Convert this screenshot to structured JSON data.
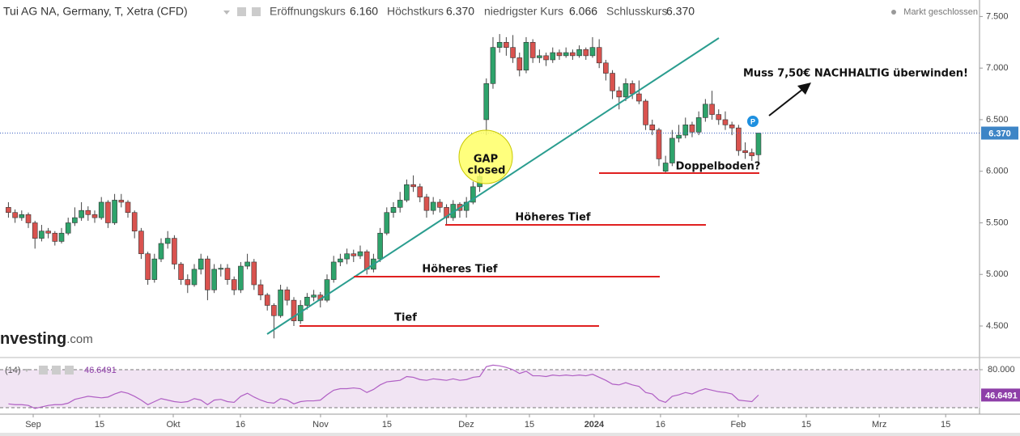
{
  "header": {
    "title": "Tui AG NA, Germany, T, Xetra (CFD)",
    "open_label": "Eröffnungskurs",
    "open": "6.160",
    "high_label": "Höchstkurs",
    "high": "6.370",
    "low_label": "niedrigster Kurs",
    "low": "6.066",
    "close_label": "Schlusskurs",
    "close": "6.370",
    "status": "Markt geschlossen"
  },
  "logo": [
    "nvesting",
    ".com"
  ],
  "chart_data": [
    {
      "type": "candlestick",
      "up_color": "#2ea36b",
      "down_color": "#d9534f",
      "xlim": [
        -1.27,
        146.3
      ],
      "ylim": [
        4.21,
        7.66
      ],
      "yticks": [
        {
          "value": 7.5,
          "label": "7.500"
        },
        {
          "value": 7,
          "label": "7.000"
        },
        {
          "value": 6.5,
          "label": "6.500"
        },
        {
          "value": 6,
          "label": "6.000"
        },
        {
          "value": 5.5,
          "label": "5.500"
        },
        {
          "value": 5,
          "label": "5.000"
        },
        {
          "value": 4.5,
          "label": "4.500"
        }
      ],
      "xticks": [
        {
          "value": 3.73,
          "label": "Sep"
        },
        {
          "value": 13.73,
          "label": "15"
        },
        {
          "value": 24.83,
          "label": "Okt"
        },
        {
          "value": 34.95,
          "label": "16"
        },
        {
          "value": 47.02,
          "label": "Nov"
        },
        {
          "value": 57.02,
          "label": "15"
        },
        {
          "value": 68.98,
          "label": "Dez"
        },
        {
          "value": 78.49,
          "label": "15"
        },
        {
          "value": 88.24,
          "label": "2024"
        },
        {
          "value": 98.24,
          "label": "16"
        },
        {
          "value": 109.95,
          "label": "Feb"
        },
        {
          "value": 120.2,
          "label": "15"
        },
        {
          "value": 131.2,
          "label": "Mrz"
        },
        {
          "value": 141.2,
          "label": "15"
        }
      ],
      "last_price": {
        "value": 6.37,
        "label": "6.370"
      },
      "annotations": [
        "GAP",
        "closed",
        "Höheres Tief",
        "Höheres Tief",
        "Tief",
        "Doppelboden?",
        "Muss 7,50€ NACHHALTIG überwinden!",
        "P"
      ],
      "ohlc": [
        [
          5.65,
          5.7,
          5.55,
          5.6
        ],
        [
          5.6,
          5.63,
          5.5,
          5.55
        ],
        [
          5.55,
          5.62,
          5.52,
          5.58
        ],
        [
          5.58,
          5.6,
          5.45,
          5.5
        ],
        [
          5.5,
          5.52,
          5.25,
          5.35
        ],
        [
          5.35,
          5.48,
          5.32,
          5.42
        ],
        [
          5.42,
          5.45,
          5.35,
          5.4
        ],
        [
          5.4,
          5.42,
          5.28,
          5.32
        ],
        [
          5.32,
          5.45,
          5.3,
          5.4
        ],
        [
          5.4,
          5.55,
          5.38,
          5.5
        ],
        [
          5.5,
          5.65,
          5.47,
          5.55
        ],
        [
          5.55,
          5.7,
          5.52,
          5.62
        ],
        [
          5.62,
          5.66,
          5.52,
          5.58
        ],
        [
          5.58,
          5.62,
          5.5,
          5.55
        ],
        [
          5.55,
          5.75,
          5.53,
          5.7
        ],
        [
          5.7,
          5.72,
          5.45,
          5.5
        ],
        [
          5.5,
          5.78,
          5.48,
          5.72
        ],
        [
          5.72,
          5.78,
          5.65,
          5.7
        ],
        [
          5.7,
          5.72,
          5.55,
          5.6
        ],
        [
          5.6,
          5.62,
          5.35,
          5.42
        ],
        [
          5.42,
          5.45,
          5.15,
          5.2
        ],
        [
          5.2,
          5.22,
          4.9,
          4.95
        ],
        [
          4.95,
          5.2,
          4.92,
          5.15
        ],
        [
          5.15,
          5.35,
          5.12,
          5.3
        ],
        [
          5.3,
          5.42,
          5.25,
          5.35
        ],
        [
          5.35,
          5.38,
          5.05,
          5.1
        ],
        [
          5.1,
          5.12,
          4.9,
          4.95
        ],
        [
          4.95,
          5.0,
          4.82,
          4.9
        ],
        [
          4.9,
          5.1,
          4.88,
          5.05
        ],
        [
          5.05,
          5.2,
          5.0,
          5.15
        ],
        [
          5.15,
          5.18,
          4.75,
          4.85
        ],
        [
          4.85,
          5.1,
          4.82,
          5.05
        ],
        [
          5.05,
          5.1,
          4.98,
          5.06
        ],
        [
          5.06,
          5.1,
          4.9,
          4.95
        ],
        [
          4.95,
          4.98,
          4.8,
          4.85
        ],
        [
          4.85,
          5.12,
          4.82,
          5.08
        ],
        [
          5.08,
          5.2,
          5.05,
          5.12
        ],
        [
          5.12,
          5.15,
          4.85,
          4.9
        ],
        [
          4.9,
          4.95,
          4.75,
          4.8
        ],
        [
          4.8,
          4.82,
          4.65,
          4.7
        ],
        [
          4.7,
          4.72,
          4.38,
          4.6
        ],
        [
          4.6,
          4.9,
          4.58,
          4.85
        ],
        [
          4.85,
          4.88,
          4.7,
          4.75
        ],
        [
          4.75,
          4.78,
          4.5,
          4.55
        ],
        [
          4.55,
          4.75,
          4.52,
          4.7
        ],
        [
          4.7,
          4.82,
          4.66,
          4.78
        ],
        [
          4.78,
          4.85,
          4.74,
          4.8
        ],
        [
          4.8,
          4.83,
          4.68,
          4.75
        ],
        [
          4.75,
          5.0,
          4.73,
          4.95
        ],
        [
          4.95,
          5.18,
          4.92,
          5.12
        ],
        [
          5.12,
          5.2,
          5.08,
          5.15
        ],
        [
          5.15,
          5.25,
          5.1,
          5.2
        ],
        [
          5.2,
          5.24,
          5.12,
          5.18
        ],
        [
          5.18,
          5.28,
          5.15,
          5.22
        ],
        [
          5.22,
          5.24,
          5.0,
          5.05
        ],
        [
          5.05,
          5.2,
          5.02,
          5.15
        ],
        [
          5.15,
          5.45,
          5.12,
          5.4
        ],
        [
          5.4,
          5.65,
          5.38,
          5.6
        ],
        [
          5.6,
          5.7,
          5.55,
          5.65
        ],
        [
          5.65,
          5.8,
          5.6,
          5.72
        ],
        [
          5.72,
          5.92,
          5.7,
          5.87
        ],
        [
          5.87,
          5.96,
          5.8,
          5.85
        ],
        [
          5.85,
          5.88,
          5.7,
          5.75
        ],
        [
          5.75,
          5.78,
          5.55,
          5.62
        ],
        [
          5.62,
          5.75,
          5.58,
          5.7
        ],
        [
          5.7,
          5.73,
          5.6,
          5.65
        ],
        [
          5.65,
          5.68,
          5.48,
          5.55
        ],
        [
          5.55,
          5.72,
          5.52,
          5.68
        ],
        [
          5.68,
          5.7,
          5.55,
          5.62
        ],
        [
          5.62,
          5.75,
          5.55,
          5.7
        ],
        [
          5.7,
          5.9,
          5.68,
          5.85
        ],
        [
          5.85,
          6.0,
          5.8,
          5.95
        ],
        [
          6.5,
          6.9,
          6.35,
          6.85
        ],
        [
          6.85,
          7.3,
          6.8,
          7.2
        ],
        [
          7.2,
          7.33,
          7.15,
          7.25
        ],
        [
          7.25,
          7.3,
          7.12,
          7.2
        ],
        [
          7.2,
          7.32,
          7.05,
          7.1
        ],
        [
          7.1,
          7.15,
          6.92,
          6.98
        ],
        [
          6.98,
          7.3,
          6.95,
          7.25
        ],
        [
          7.25,
          7.28,
          7.05,
          7.1
        ],
        [
          7.1,
          7.18,
          7.05,
          7.12
        ],
        [
          7.12,
          7.15,
          7.02,
          7.08
        ],
        [
          7.08,
          7.2,
          7.05,
          7.15
        ],
        [
          7.15,
          7.18,
          7.08,
          7.12
        ],
        [
          7.12,
          7.2,
          7.1,
          7.15
        ],
        [
          7.15,
          7.18,
          7.08,
          7.12
        ],
        [
          7.12,
          7.22,
          7.1,
          7.18
        ],
        [
          7.18,
          7.2,
          7.08,
          7.12
        ],
        [
          7.12,
          7.3,
          7.1,
          7.2
        ],
        [
          7.2,
          7.28,
          7.0,
          7.05
        ],
        [
          7.05,
          7.08,
          6.88,
          6.95
        ],
        [
          6.95,
          6.98,
          6.7,
          6.78
        ],
        [
          6.78,
          6.82,
          6.6,
          6.72
        ],
        [
          6.72,
          6.9,
          6.68,
          6.85
        ],
        [
          6.85,
          6.88,
          6.7,
          6.75
        ],
        [
          6.75,
          6.88,
          6.65,
          6.68
        ],
        [
          6.68,
          6.7,
          6.4,
          6.45
        ],
        [
          6.45,
          6.5,
          6.35,
          6.4
        ],
        [
          6.4,
          6.42,
          6.05,
          6.12
        ],
        [
          6.0,
          6.15,
          5.98,
          6.08
        ],
        [
          6.08,
          6.4,
          6.05,
          6.32
        ],
        [
          6.32,
          6.45,
          6.28,
          6.35
        ],
        [
          6.35,
          6.52,
          6.32,
          6.45
        ],
        [
          6.45,
          6.48,
          6.33,
          6.38
        ],
        [
          6.38,
          6.58,
          6.35,
          6.52
        ],
        [
          6.52,
          6.7,
          6.48,
          6.65
        ],
        [
          6.65,
          6.78,
          6.5,
          6.55
        ],
        [
          6.55,
          6.6,
          6.45,
          6.5
        ],
        [
          6.5,
          6.58,
          6.4,
          6.45
        ],
        [
          6.45,
          6.48,
          6.35,
          6.42
        ],
        [
          6.42,
          6.45,
          6.15,
          6.2
        ],
        [
          6.2,
          6.28,
          6.12,
          6.18
        ],
        [
          6.18,
          6.22,
          6.1,
          6.15
        ],
        [
          6.16,
          6.37,
          6.066,
          6.37
        ]
      ]
    },
    {
      "type": "line",
      "title": "(14)",
      "color": "#b05fc4",
      "band_color": "#f1e4f3",
      "ylim": [
        21.5,
        92.8
      ],
      "band": [
        30,
        80
      ],
      "yticks": [
        {
          "value": 80,
          "label": "80.000"
        }
      ],
      "values": [
        35,
        34,
        34,
        33,
        29,
        31,
        33,
        34,
        34,
        36,
        41,
        43,
        45,
        44,
        43,
        44,
        48,
        51,
        49,
        45,
        40,
        34,
        38,
        42,
        40,
        38,
        37,
        38,
        42,
        40,
        34,
        40,
        41,
        38,
        37,
        45,
        49,
        44,
        40,
        37,
        36,
        42,
        40,
        35,
        38,
        39,
        39,
        40,
        47,
        53,
        55,
        55,
        56,
        55,
        50,
        54,
        60,
        64,
        65,
        66,
        71,
        70,
        67,
        66,
        68,
        67,
        66,
        68,
        66,
        67,
        70,
        71,
        84,
        86,
        85,
        83,
        80,
        75,
        78,
        72,
        72,
        71,
        73,
        72,
        73,
        72,
        73,
        72,
        74,
        70,
        66,
        61,
        60,
        63,
        60,
        58,
        50,
        48,
        40,
        37,
        45,
        47,
        50,
        48,
        52,
        55,
        53,
        51,
        50,
        48,
        40,
        39,
        38,
        46.6491
      ]
    }
  ]
}
